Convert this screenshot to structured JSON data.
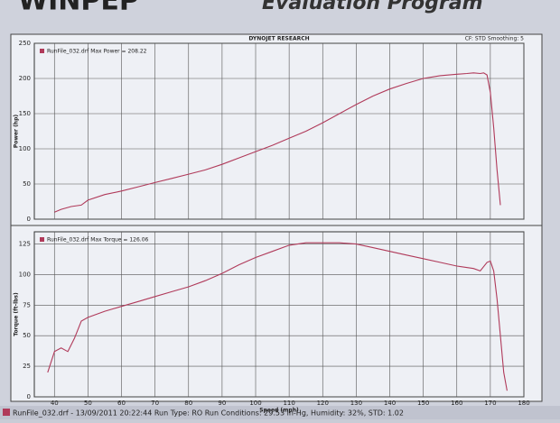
{
  "header": {
    "logo": "WINPEP",
    "program": "Evaluation Program"
  },
  "chart_data": [
    {
      "type": "line",
      "title": "DYNOJET RESEARCH",
      "subtitle": "CF: STD  Smoothing: 5",
      "y_label": "Power (hp)",
      "ylim": [
        0,
        250
      ],
      "yticks": [
        0,
        50,
        100,
        150,
        200,
        250
      ],
      "grid": true,
      "legend": "top-left",
      "x": [
        40,
        42,
        45,
        48,
        50,
        55,
        60,
        65,
        70,
        75,
        80,
        85,
        90,
        95,
        100,
        105,
        110,
        115,
        120,
        125,
        130,
        135,
        140,
        145,
        150,
        155,
        160,
        163,
        165,
        167,
        168,
        169,
        170,
        171,
        172,
        173
      ],
      "series": [
        {
          "name": "RunFile_032.drf Max Power = 208.22",
          "color": "#b03a5a",
          "values": [
            10,
            14,
            18,
            20,
            27,
            35,
            40,
            46,
            52,
            58,
            64,
            70,
            78,
            87,
            96,
            105,
            115,
            125,
            137,
            150,
            163,
            175,
            185,
            193,
            200,
            204,
            206,
            207,
            208,
            207,
            208,
            205,
            180,
            130,
            70,
            20
          ]
        }
      ]
    },
    {
      "type": "line",
      "y_label": "Torque (ft-lbs)",
      "x_label": "Speed (mph)",
      "xlim": [
        34,
        180
      ],
      "xticks": [
        40,
        50,
        60,
        70,
        80,
        90,
        100,
        110,
        120,
        130,
        140,
        150,
        160,
        170,
        180
      ],
      "ylim": [
        0,
        135
      ],
      "yticks": [
        0,
        25,
        50,
        75,
        100,
        125
      ],
      "grid": true,
      "legend": "top-left",
      "x": [
        38,
        40,
        42,
        44,
        46,
        48,
        50,
        55,
        60,
        65,
        70,
        75,
        80,
        85,
        90,
        95,
        100,
        105,
        110,
        115,
        120,
        125,
        130,
        135,
        140,
        145,
        150,
        155,
        160,
        165,
        167,
        169,
        170,
        171,
        172,
        173,
        174,
        175
      ],
      "series": [
        {
          "name": "RunFile_032.drf Max Torque = 126.06",
          "color": "#b03a5a",
          "values": [
            20,
            37,
            40,
            37,
            48,
            62,
            65,
            70,
            74,
            78,
            82,
            86,
            90,
            95,
            101,
            108,
            114,
            119,
            124,
            126,
            126,
            126,
            125,
            122,
            119,
            116,
            113,
            110,
            107,
            105,
            103,
            110,
            111,
            103,
            80,
            50,
            20,
            5
          ]
        }
      ]
    }
  ],
  "footer": "RunFile_032.drf - 13/09/2011 20:22:44   Run Type: RO   Run Conditions: 29.53 in-Hg,  Humidity: 32%,  STD: 1.02"
}
